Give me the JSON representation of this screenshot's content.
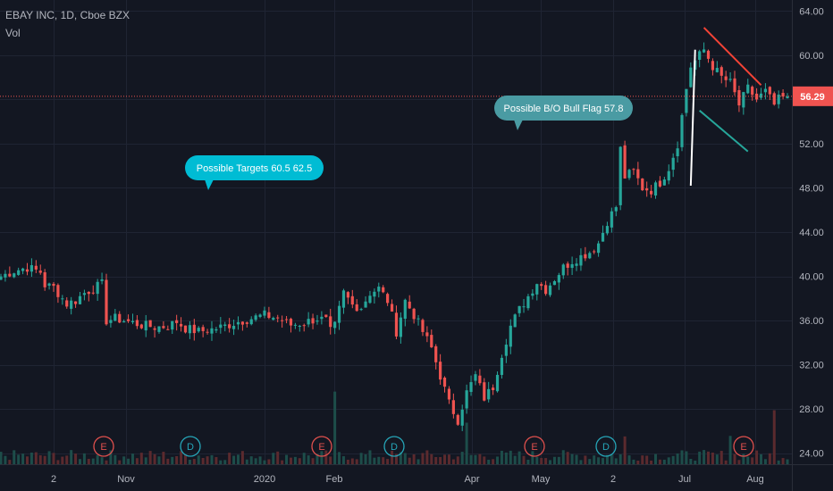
{
  "header": {
    "symbol_line": "EBAY INC, 1D, Cboe BZX",
    "indicator": "Vol"
  },
  "colors": {
    "background": "#131722",
    "grid": "#1f2433",
    "up": "#26a69a",
    "down": "#ef5350",
    "vol_up": "#1d4d4a",
    "vol_down": "#5b2a2e",
    "text": "#b2b5be",
    "price_line": "#ef5350",
    "bubble_targets": "#00bcd4",
    "bubble_flag": "#4a9ba3",
    "pole": "#ffffff",
    "flag_top": "#f44336",
    "flag_bottom": "#26a69a"
  },
  "chart_data": {
    "type": "candlestick",
    "y_axis": {
      "ticks": [
        "64.00",
        "60.00",
        "56.00",
        "52.00",
        "48.00",
        "44.00",
        "40.00",
        "36.00",
        "32.00",
        "28.00",
        "24.00"
      ],
      "ylim": [
        23,
        65
      ]
    },
    "x_axis": {
      "ticks": [
        "2",
        "Nov",
        "2020",
        "Feb",
        "Apr",
        "May",
        "2",
        "Jul",
        "Aug"
      ]
    },
    "last_price": {
      "value": 56.29,
      "label": "56.29"
    },
    "close_path": [
      [
        0,
        40.0
      ],
      [
        3,
        40.5
      ],
      [
        6,
        40.8
      ],
      [
        9,
        40.4
      ],
      [
        10,
        39.2
      ],
      [
        12,
        39.0
      ],
      [
        14,
        38.0
      ],
      [
        15,
        37.5
      ],
      [
        17,
        37.8
      ],
      [
        19,
        38.5
      ],
      [
        21,
        38.9
      ],
      [
        23,
        39.3
      ],
      [
        24,
        36.0
      ],
      [
        26,
        36.2
      ],
      [
        29,
        35.9
      ],
      [
        32,
        35.6
      ],
      [
        35,
        35.4
      ],
      [
        38,
        35.5
      ],
      [
        40,
        35.9
      ],
      [
        42,
        35.3
      ],
      [
        45,
        35.0
      ],
      [
        48,
        35.2
      ],
      [
        51,
        35.5
      ],
      [
        54,
        35.9
      ],
      [
        57,
        36.2
      ],
      [
        60,
        36.5
      ],
      [
        63,
        36.2
      ],
      [
        66,
        35.6
      ],
      [
        69,
        35.8
      ],
      [
        72,
        36.2
      ],
      [
        74,
        36.0
      ],
      [
        75,
        35.0
      ],
      [
        76,
        35.5
      ],
      [
        77,
        37.0
      ],
      [
        78,
        38.5
      ],
      [
        80,
        37.4
      ],
      [
        82,
        37.2
      ],
      [
        84,
        38.5
      ],
      [
        86,
        38.9
      ],
      [
        88,
        37.8
      ],
      [
        90,
        35.0
      ],
      [
        92,
        37.8
      ],
      [
        94,
        36.5
      ],
      [
        96,
        35.0
      ],
      [
        98,
        33.5
      ],
      [
        100,
        31.0
      ],
      [
        102,
        28.5
      ],
      [
        104,
        27.0
      ],
      [
        106,
        29.5
      ],
      [
        108,
        31.0
      ],
      [
        110,
        29.0
      ],
      [
        112,
        30.0
      ],
      [
        114,
        33.0
      ],
      [
        116,
        35.5
      ],
      [
        118,
        37.0
      ],
      [
        120,
        38.2
      ],
      [
        122,
        39.5
      ],
      [
        124,
        38.8
      ],
      [
        126,
        39.8
      ],
      [
        128,
        40.8
      ],
      [
        130,
        41.4
      ],
      [
        132,
        41.8
      ],
      [
        134,
        42.2
      ],
      [
        136,
        43.0
      ],
      [
        138,
        45.0
      ],
      [
        140,
        46.3
      ],
      [
        141,
        51.5
      ],
      [
        142,
        49.0
      ],
      [
        144,
        49.5
      ],
      [
        146,
        48.0
      ],
      [
        148,
        47.8
      ],
      [
        150,
        48.5
      ],
      [
        152,
        49.8
      ],
      [
        154,
        52.0
      ],
      [
        156,
        57.0
      ],
      [
        157,
        59.0
      ],
      [
        158,
        59.5
      ],
      [
        160,
        60.5
      ],
      [
        162,
        59.0
      ],
      [
        164,
        58.0
      ],
      [
        166,
        57.5
      ],
      [
        168,
        55.5
      ],
      [
        170,
        57.0
      ],
      [
        172,
        56.0
      ],
      [
        174,
        56.7
      ],
      [
        176,
        55.5
      ],
      [
        177,
        56.0
      ],
      [
        179,
        56.29
      ]
    ],
    "volume_spikes": [
      [
        76,
        5.5
      ],
      [
        106,
        2.8
      ],
      [
        142,
        1.6
      ],
      [
        166,
        2.0
      ],
      [
        176,
        4.0
      ]
    ],
    "annotations": [
      {
        "text": "Possible Targets  60.5  62.5"
      },
      {
        "text": "Possible B/O Bull Flag  57.8"
      }
    ],
    "events": [
      "E",
      "D",
      "E",
      "D",
      "E",
      "D",
      "E"
    ]
  }
}
